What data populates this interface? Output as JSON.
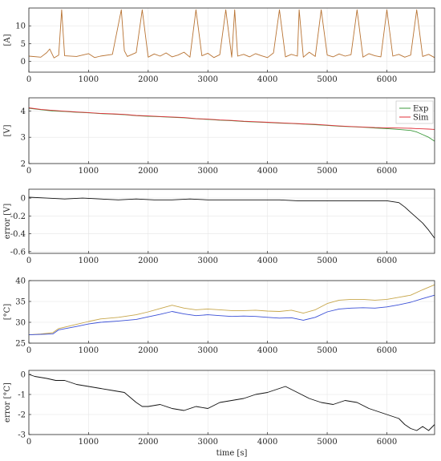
{
  "colors": {
    "current": "#b87333",
    "current_light": "#ff6a6a",
    "exp_voltage": "#3c9a3c",
    "sim_voltage": "#e0303a",
    "voltage_blue": "#2a2ad0",
    "error": "#111111",
    "temp_orange": "#c7a64a",
    "temp_blue": "#3a4fd6",
    "grid": "#e6e6e6",
    "axis": "#262626"
  },
  "chart_data": [
    {
      "id": "current",
      "type": "line",
      "title": "",
      "xlabel": "",
      "ylabel": "[A]",
      "xlim": [
        0,
        6800
      ],
      "ylim": [
        -3,
        15
      ],
      "xticks": [
        0,
        1000,
        2000,
        3000,
        4000,
        5000,
        6000
      ],
      "yticks": [
        0,
        5,
        10
      ],
      "grid": true,
      "series": [
        {
          "color_key": "current",
          "x": [
            0,
            200,
            300,
            350,
            420,
            500,
            550,
            600,
            800,
            1000,
            1100,
            1200,
            1400,
            1550,
            1600,
            1650,
            1800,
            1900,
            2000,
            2100,
            2200,
            2300,
            2400,
            2500,
            2600,
            2700,
            2800,
            2900,
            3000,
            3100,
            3200,
            3300,
            3400,
            3450,
            3500,
            3600,
            3700,
            3800,
            3900,
            4000,
            4100,
            4200,
            4300,
            4400,
            4500,
            4530,
            4600,
            4700,
            4800,
            4900,
            5000,
            5100,
            5200,
            5300,
            5400,
            5500,
            5600,
            5700,
            5800,
            5900,
            6000,
            6100,
            6200,
            6300,
            6400,
            6500,
            6600,
            6700,
            6800
          ],
          "y": [
            1.5,
            1.2,
            2.5,
            3.5,
            1.0,
            1.8,
            14.5,
            1.6,
            1.4,
            2.2,
            1.1,
            1.5,
            2.0,
            14.5,
            3.0,
            1.4,
            2.5,
            14.5,
            1.2,
            2.1,
            1.5,
            2.4,
            1.3,
            1.8,
            2.6,
            1.2,
            14.5,
            1.6,
            2.3,
            1.1,
            1.9,
            14.5,
            1.2,
            14.5,
            1.5,
            2.0,
            1.3,
            2.2,
            1.6,
            1.1,
            2.4,
            14.5,
            1.3,
            2.0,
            1.5,
            14.5,
            1.2,
            2.6,
            1.4,
            14.5,
            1.8,
            1.3,
            2.1,
            1.5,
            1.9,
            14.5,
            1.2,
            2.2,
            1.6,
            1.3,
            14.5,
            1.5,
            2.0,
            1.2,
            1.8,
            14.5,
            1.4,
            2.0,
            1.1
          ]
        }
      ]
    },
    {
      "id": "voltage",
      "type": "line",
      "title": "",
      "xlabel": "",
      "ylabel": "[V]",
      "xlim": [
        0,
        6800
      ],
      "ylim": [
        2,
        4.5
      ],
      "xticks": [
        0,
        1000,
        2000,
        3000,
        4000,
        5000,
        6000
      ],
      "yticks": [
        2,
        3,
        4
      ],
      "grid": true,
      "legend": {
        "placement": "top-right",
        "entries": [
          "Exp",
          "Sim"
        ]
      },
      "series": [
        {
          "name": "Exp",
          "color_key": "exp_voltage",
          "x": [
            0,
            200,
            400,
            600,
            800,
            1000,
            1200,
            1400,
            1600,
            1800,
            2000,
            2200,
            2400,
            2600,
            2800,
            3000,
            3200,
            3400,
            3600,
            3800,
            4000,
            4200,
            4400,
            4600,
            4800,
            5000,
            5200,
            5400,
            5600,
            5800,
            6000,
            6200,
            6400,
            6500,
            6600,
            6700,
            6800
          ],
          "y": [
            4.1,
            4.05,
            4.0,
            3.98,
            3.95,
            3.93,
            3.9,
            3.88,
            3.86,
            3.82,
            3.8,
            3.78,
            3.76,
            3.74,
            3.7,
            3.68,
            3.65,
            3.63,
            3.6,
            3.58,
            3.56,
            3.54,
            3.52,
            3.5,
            3.48,
            3.45,
            3.42,
            3.4,
            3.38,
            3.35,
            3.33,
            3.3,
            3.26,
            3.2,
            3.1,
            3.0,
            2.85
          ]
        },
        {
          "name": "Sim",
          "color_key": "sim_voltage",
          "x": [
            0,
            200,
            400,
            600,
            800,
            1000,
            1200,
            1400,
            1600,
            1800,
            2000,
            2200,
            2400,
            2600,
            2800,
            3000,
            3200,
            3400,
            3600,
            3800,
            4000,
            4200,
            4400,
            4600,
            4800,
            5000,
            5200,
            5400,
            5600,
            5800,
            6000,
            6200,
            6400,
            6500,
            6600,
            6700,
            6800
          ],
          "y": [
            4.12,
            4.06,
            4.02,
            3.99,
            3.96,
            3.94,
            3.91,
            3.89,
            3.87,
            3.83,
            3.81,
            3.79,
            3.77,
            3.75,
            3.71,
            3.69,
            3.66,
            3.64,
            3.61,
            3.59,
            3.57,
            3.55,
            3.53,
            3.51,
            3.49,
            3.46,
            3.43,
            3.41,
            3.39,
            3.37,
            3.36,
            3.35,
            3.34,
            3.33,
            3.32,
            3.31,
            3.3
          ]
        }
      ]
    },
    {
      "id": "voltage_error",
      "type": "line",
      "title": "",
      "xlabel": "",
      "ylabel": "error [V]",
      "xlim": [
        0,
        6800
      ],
      "ylim": [
        -0.62,
        0.1
      ],
      "xticks": [
        0,
        1000,
        2000,
        3000,
        4000,
        5000,
        6000
      ],
      "yticks": [
        -0.6,
        -0.4,
        -0.2,
        0
      ],
      "grid": true,
      "series": [
        {
          "color_key": "error",
          "x": [
            0,
            300,
            600,
            900,
            1200,
            1500,
            1800,
            2100,
            2400,
            2700,
            3000,
            3300,
            3600,
            3900,
            4200,
            4500,
            4800,
            5100,
            5400,
            5700,
            6000,
            6200,
            6300,
            6400,
            6500,
            6600,
            6700,
            6800
          ],
          "y": [
            0.01,
            0.0,
            -0.01,
            0.0,
            -0.01,
            -0.02,
            -0.01,
            -0.02,
            -0.02,
            -0.01,
            -0.02,
            -0.02,
            -0.02,
            -0.02,
            -0.02,
            -0.03,
            -0.03,
            -0.03,
            -0.03,
            -0.03,
            -0.03,
            -0.05,
            -0.1,
            -0.16,
            -0.22,
            -0.28,
            -0.36,
            -0.45
          ]
        }
      ]
    },
    {
      "id": "temperature",
      "type": "line",
      "title": "",
      "xlabel": "",
      "ylabel": "[°C]",
      "xlim": [
        0,
        6800
      ],
      "ylim": [
        25,
        40
      ],
      "xticks": [
        0,
        1000,
        2000,
        3000,
        4000,
        5000,
        6000
      ],
      "yticks": [
        25,
        30,
        35,
        40
      ],
      "grid": true,
      "series": [
        {
          "color_key": "temp_orange",
          "x": [
            0,
            200,
            400,
            500,
            800,
            1000,
            1200,
            1500,
            1800,
            2000,
            2200,
            2400,
            2600,
            2800,
            3000,
            3200,
            3400,
            3600,
            3800,
            4000,
            4200,
            4400,
            4600,
            4800,
            5000,
            5200,
            5400,
            5600,
            5800,
            6000,
            6200,
            6400,
            6600,
            6800
          ],
          "y": [
            27.0,
            27.2,
            27.5,
            28.5,
            29.5,
            30.2,
            30.8,
            31.2,
            31.8,
            32.5,
            33.3,
            34.1,
            33.4,
            33.0,
            33.2,
            33.0,
            32.8,
            32.8,
            32.9,
            32.7,
            32.6,
            32.9,
            32.2,
            33.0,
            34.5,
            35.3,
            35.5,
            35.5,
            35.3,
            35.5,
            36.0,
            36.5,
            37.8,
            39.0
          ]
        },
        {
          "color_key": "temp_blue",
          "x": [
            0,
            200,
            400,
            500,
            800,
            1000,
            1200,
            1500,
            1800,
            2000,
            2200,
            2400,
            2600,
            2800,
            3000,
            3200,
            3400,
            3600,
            3800,
            4000,
            4200,
            4400,
            4600,
            4800,
            5000,
            5200,
            5400,
            5600,
            5800,
            6000,
            6200,
            6400,
            6600,
            6800
          ],
          "y": [
            27.0,
            27.1,
            27.2,
            28.2,
            29.0,
            29.6,
            30.0,
            30.3,
            30.7,
            31.3,
            31.9,
            32.6,
            32.0,
            31.6,
            31.8,
            31.6,
            31.4,
            31.5,
            31.4,
            31.2,
            31.0,
            31.1,
            30.5,
            31.2,
            32.5,
            33.2,
            33.4,
            33.5,
            33.4,
            33.7,
            34.2,
            34.8,
            35.7,
            36.5
          ]
        }
      ]
    },
    {
      "id": "temperature_error",
      "type": "line",
      "title": "",
      "xlabel": "time [s]",
      "ylabel": "error [°C]",
      "xlim": [
        0,
        6800
      ],
      "ylim": [
        -3,
        0.2
      ],
      "xticks": [
        0,
        1000,
        2000,
        3000,
        4000,
        5000,
        6000
      ],
      "yticks": [
        -3,
        -2,
        -1,
        0
      ],
      "grid": true,
      "series": [
        {
          "color_key": "error",
          "x": [
            0,
            100,
            300,
            450,
            600,
            800,
            1000,
            1200,
            1400,
            1600,
            1800,
            1900,
            2000,
            2200,
            2400,
            2600,
            2800,
            3000,
            3200,
            3400,
            3600,
            3800,
            4000,
            4200,
            4300,
            4500,
            4700,
            4900,
            5100,
            5300,
            5500,
            5700,
            5900,
            6100,
            6200,
            6300,
            6400,
            6500,
            6600,
            6700,
            6800
          ],
          "y": [
            0.0,
            -0.1,
            -0.2,
            -0.3,
            -0.3,
            -0.5,
            -0.6,
            -0.7,
            -0.8,
            -0.9,
            -1.4,
            -1.6,
            -1.6,
            -1.5,
            -1.7,
            -1.8,
            -1.6,
            -1.7,
            -1.4,
            -1.3,
            -1.2,
            -1.0,
            -0.9,
            -0.7,
            -0.6,
            -0.9,
            -1.2,
            -1.4,
            -1.5,
            -1.3,
            -1.4,
            -1.7,
            -1.9,
            -2.1,
            -2.2,
            -2.5,
            -2.7,
            -2.8,
            -2.6,
            -2.8,
            -2.5
          ]
        }
      ]
    }
  ]
}
